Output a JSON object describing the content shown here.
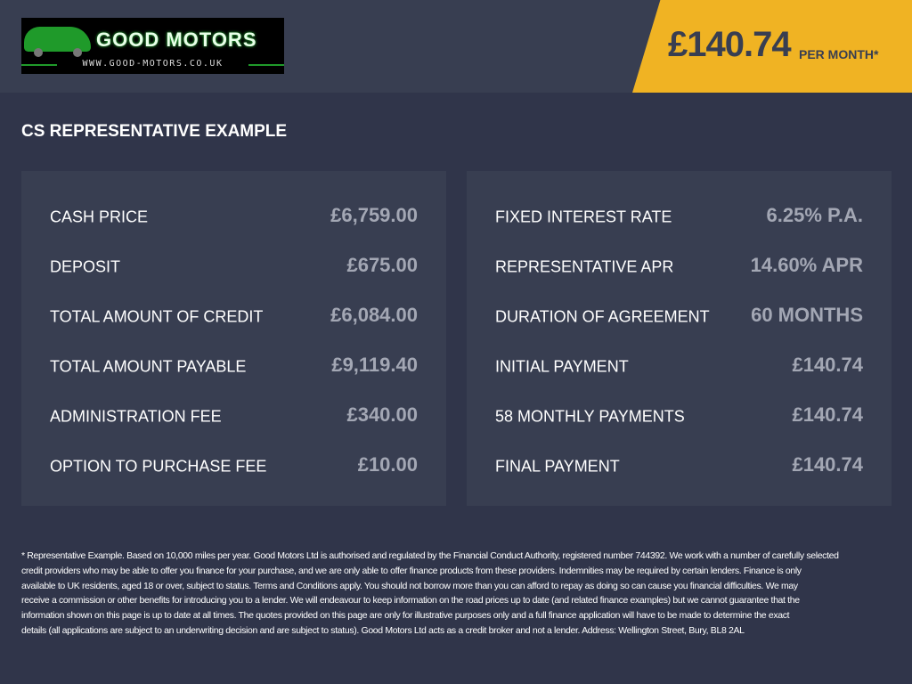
{
  "header": {
    "logo": {
      "brand": "GOOD MOTORS",
      "url": "WWW.GOOD-MOTORS.CO.UK"
    },
    "monthly_price": "£140.74",
    "per_month_label": "PER MONTH*",
    "badge_color": "#f0b323"
  },
  "title": "CS REPRESENTATIVE EXAMPLE",
  "left_panel": [
    {
      "label": "CASH PRICE",
      "value": "£6,759.00"
    },
    {
      "label": "DEPOSIT",
      "value": "£675.00"
    },
    {
      "label": "TOTAL AMOUNT OF CREDIT",
      "value": "£6,084.00"
    },
    {
      "label": "TOTAL AMOUNT PAYABLE",
      "value": "£9,119.40"
    },
    {
      "label": "ADMINISTRATION FEE",
      "value": "£340.00"
    },
    {
      "label": "OPTION TO PURCHASE FEE",
      "value": "£10.00"
    }
  ],
  "right_panel": [
    {
      "label": "FIXED INTEREST RATE",
      "value": "6.25% P.A."
    },
    {
      "label": "REPRESENTATIVE APR",
      "value": "14.60% APR"
    },
    {
      "label": "DURATION OF AGREEMENT",
      "value": "60 MONTHS"
    },
    {
      "label": "INITIAL PAYMENT",
      "value": "£140.74"
    },
    {
      "label": "58 MONTHLY PAYMENTS",
      "value": "£140.74"
    },
    {
      "label": "FINAL PAYMENT",
      "value": "£140.74"
    }
  ],
  "disclaimer_lines": [
    "* Representative Example. Based on 10,000 miles per year. Good Motors Ltd is authorised and regulated by the Financial Conduct Authority, registered number 744392. We work with a number of carefully selected",
    "credit providers who may be able to offer you finance for your purchase, and we are only able to offer finance products from these providers. Indemnities may be required by certain lenders. Finance is only",
    "available to UK residents, aged 18 or over, subject to status. Terms and Conditions apply. You should not borrow more than you can afford to repay as doing so can cause you financial difficulties. We may",
    "receive a commission or other benefits for introducing you to a lender. We will endeavour to keep information on the road prices up to date (and related finance examples) but we cannot guarantee that the",
    "information shown on this page is up to date at all times. The quotes provided on this page are only for illustrative purposes only and a full finance application will have to be made to determine the exact",
    "details (all applications are subject to an underwriting decision and are subject to status). Good Motors Ltd acts as a credit broker and not a lender. Address: Wellington Street, Bury, BL8 2AL"
  ]
}
